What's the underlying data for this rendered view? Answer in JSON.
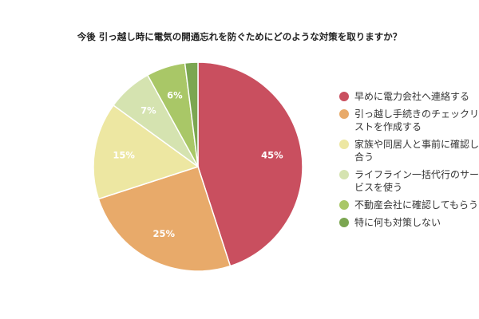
{
  "chart_data": {
    "type": "pie",
    "title": "今後 引っ越し時に電気の開通忘れを防ぐためにどのような対策を取りますか？",
    "categories": [
      "早めに電力会社へ連絡する",
      "引っ越し手続きのチェックリストを作成する",
      "家族や同居人と事前に確認し合う",
      "ライフライン一括代行のサービスを使う",
      "不動産会社に確認してもらう",
      "特に何も対策しない"
    ],
    "values": [
      45,
      25,
      15,
      7,
      6,
      2
    ],
    "data_labels": [
      "45%",
      "25%",
      "15%",
      "7%",
      "6%",
      ""
    ],
    "colors": [
      "#c94f5f",
      "#e8aa6a",
      "#ede7a2",
      "#d5e3b0",
      "#a9c767",
      "#7ba651"
    ],
    "legend_position": "right"
  }
}
